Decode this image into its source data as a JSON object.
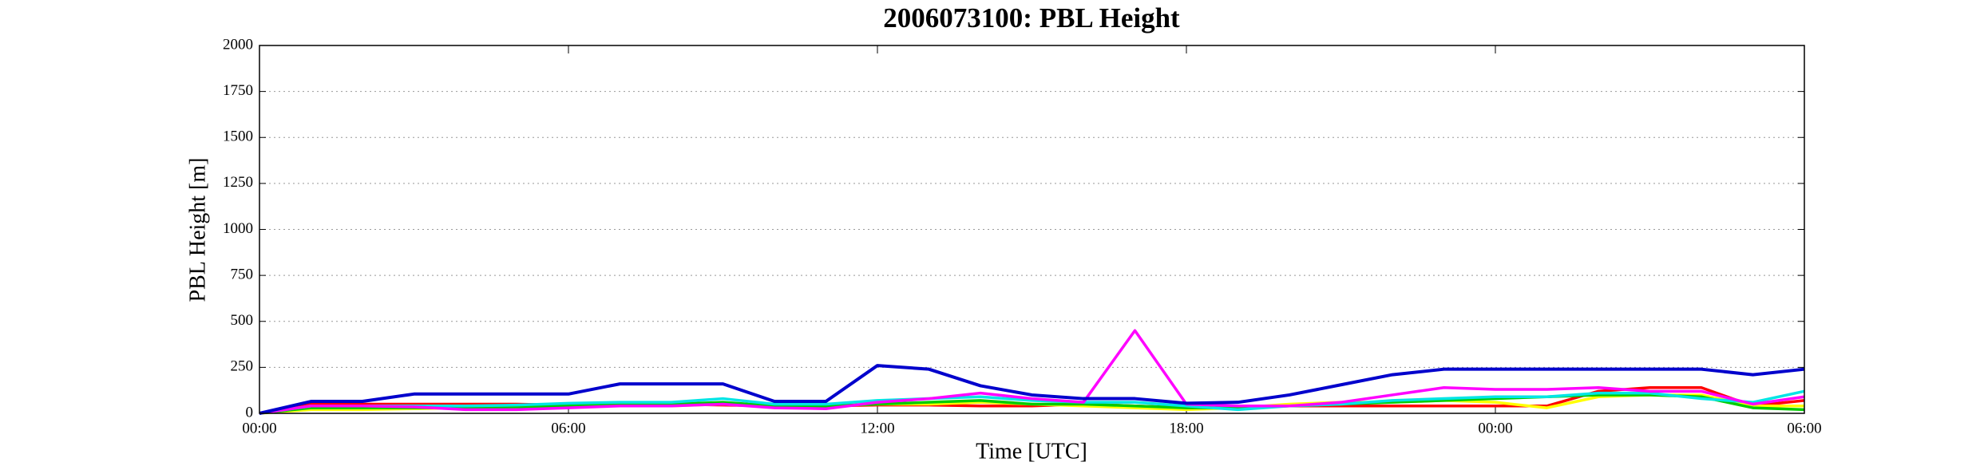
{
  "chart_data": {
    "type": "line",
    "title": "2006073100: PBL Height",
    "xlabel": "Time [UTC]",
    "ylabel": "PBL Height [m]",
    "x": [
      0,
      1,
      2,
      3,
      4,
      5,
      6,
      7,
      8,
      9,
      10,
      11,
      12,
      13,
      14,
      15,
      16,
      17,
      18,
      19,
      20,
      21,
      22,
      23,
      24,
      25,
      26,
      27,
      28,
      29,
      30
    ],
    "xlim": [
      0,
      30
    ],
    "xticks": [
      {
        "value": 0,
        "label": "00:00"
      },
      {
        "value": 6,
        "label": "06:00"
      },
      {
        "value": 12,
        "label": "12:00"
      },
      {
        "value": 18,
        "label": "18:00"
      },
      {
        "value": 24,
        "label": "00:00"
      },
      {
        "value": 30,
        "label": "06:00"
      }
    ],
    "ylim": [
      0,
      2000
    ],
    "yticks": [
      0,
      250,
      500,
      750,
      1000,
      1250,
      1500,
      1750,
      2000
    ],
    "grid": true,
    "series": [
      {
        "color": "#ff0000",
        "values": [
          0,
          50,
          50,
          50,
          50,
          50,
          45,
          45,
          50,
          45,
          40,
          40,
          45,
          45,
          40,
          40,
          50,
          40,
          30,
          40,
          40,
          40,
          40,
          40,
          40,
          40,
          120,
          140,
          140,
          40,
          70
        ]
      },
      {
        "color": "#ffff00",
        "values": [
          0,
          20,
          20,
          25,
          30,
          30,
          40,
          40,
          40,
          50,
          40,
          40,
          50,
          50,
          60,
          50,
          40,
          30,
          20,
          30,
          50,
          60,
          60,
          70,
          60,
          30,
          90,
          100,
          100,
          40,
          40
        ]
      },
      {
        "color": "#00cc00",
        "values": [
          0,
          30,
          30,
          30,
          30,
          35,
          40,
          50,
          50,
          60,
          40,
          40,
          50,
          60,
          70,
          50,
          50,
          40,
          30,
          30,
          40,
          50,
          60,
          70,
          80,
          90,
          100,
          100,
          90,
          30,
          20
        ]
      },
      {
        "color": "#00e5e5",
        "values": [
          0,
          40,
          40,
          40,
          40,
          45,
          55,
          60,
          60,
          80,
          50,
          50,
          70,
          80,
          90,
          70,
          60,
          60,
          40,
          20,
          40,
          50,
          70,
          80,
          90,
          90,
          110,
          110,
          80,
          60,
          120
        ]
      },
      {
        "color": "#ff00ff",
        "values": [
          0,
          40,
          40,
          35,
          20,
          20,
          30,
          40,
          40,
          50,
          30,
          25,
          60,
          80,
          110,
          80,
          60,
          450,
          50,
          40,
          40,
          60,
          100,
          140,
          130,
          130,
          140,
          120,
          120,
          50,
          90
        ]
      },
      {
        "color": "#0000cc",
        "values": [
          0,
          65,
          65,
          105,
          105,
          105,
          105,
          160,
          160,
          160,
          65,
          65,
          260,
          240,
          150,
          100,
          80,
          80,
          55,
          60,
          100,
          155,
          210,
          240,
          240,
          240,
          240,
          240,
          240,
          210,
          240
        ]
      }
    ]
  }
}
